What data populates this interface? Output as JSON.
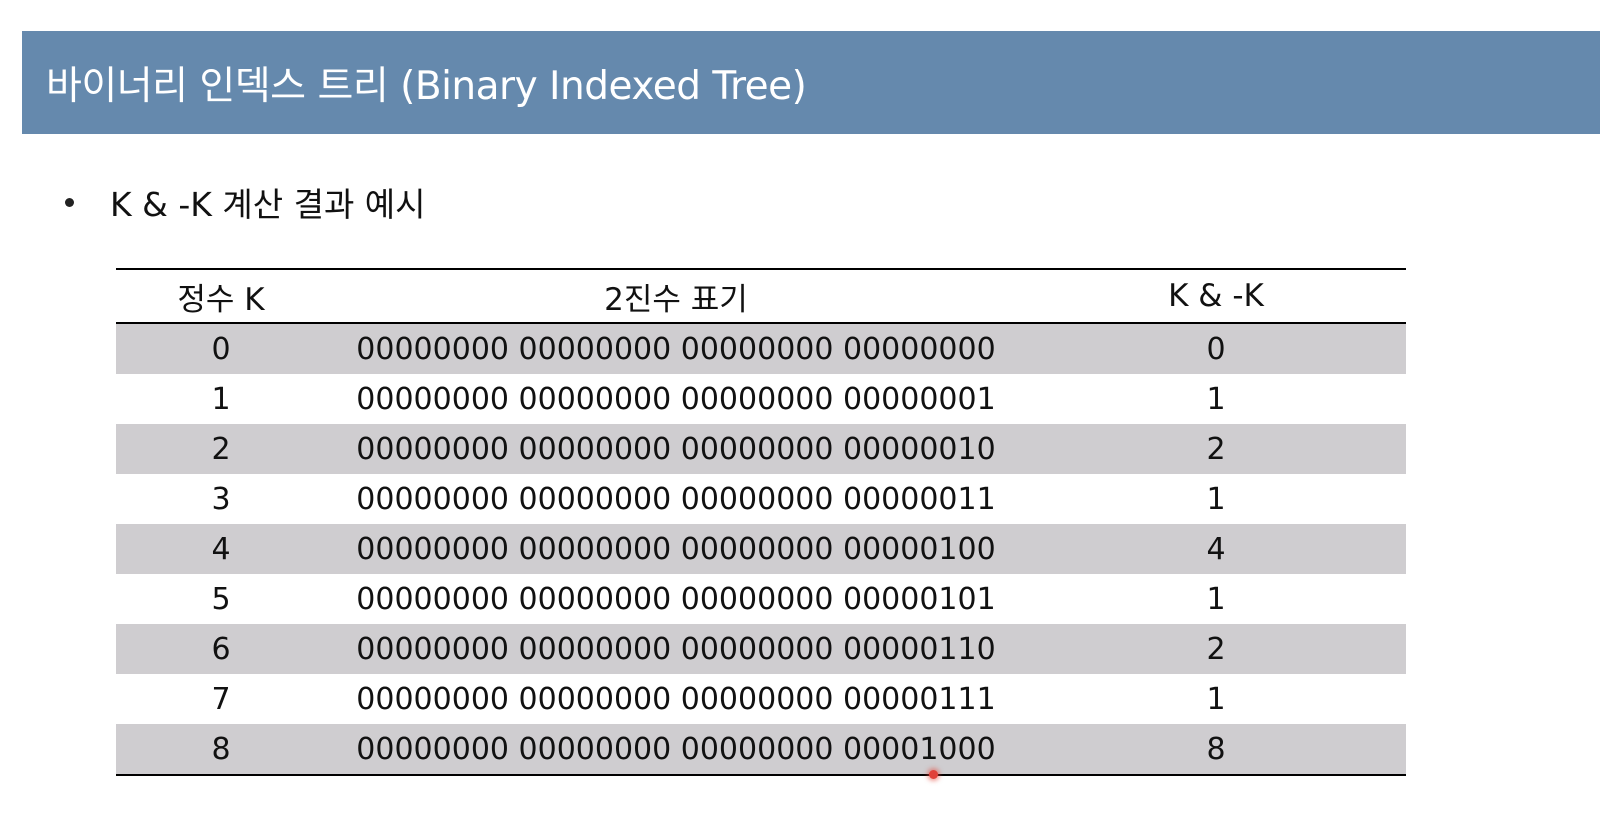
{
  "title": "바이너리 인덱스 트리 (Binary Indexed Tree)",
  "bullet": "K & -K 계산 결과 예시",
  "table": {
    "headers": [
      "정수 K",
      "2진수 표기",
      "K & -K"
    ],
    "rows": [
      [
        "0",
        "00000000 00000000 00000000 00000000",
        "0"
      ],
      [
        "1",
        "00000000 00000000 00000000 00000001",
        "1"
      ],
      [
        "2",
        "00000000 00000000 00000000 00000010",
        "2"
      ],
      [
        "3",
        "00000000 00000000 00000000 00000011",
        "1"
      ],
      [
        "4",
        "00000000 00000000 00000000 00000100",
        "4"
      ],
      [
        "5",
        "00000000 00000000 00000000 00000101",
        "1"
      ],
      [
        "6",
        "00000000 00000000 00000000 00000110",
        "2"
      ],
      [
        "7",
        "00000000 00000000 00000000 00000111",
        "1"
      ],
      [
        "8",
        "00000000 00000000 00000000 00001000",
        "8"
      ]
    ]
  },
  "colors": {
    "title_bar": "#6589ad",
    "row_shade": "#cfcdd0",
    "pointer": "#e0413a"
  }
}
